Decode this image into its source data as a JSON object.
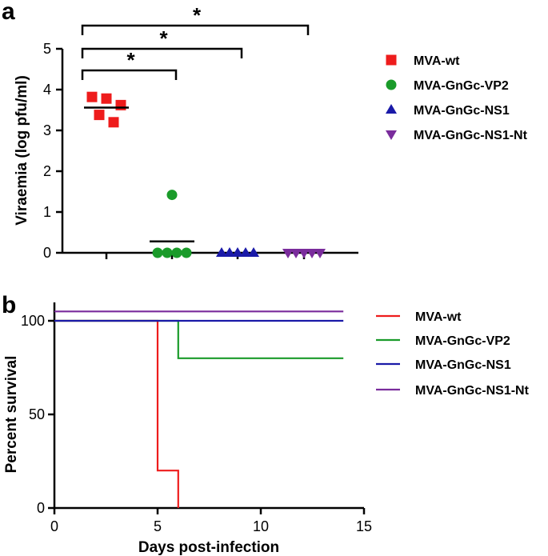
{
  "figure": {
    "panel_a_label": "a",
    "panel_b_label": "b"
  },
  "colors": {
    "MVA-wt": "#ee1c1c",
    "MVA-GnGc-VP2": "#1a9b2a",
    "MVA-GnGc-NS1": "#1a1aa8",
    "MVA-GnGc-NS1-Nt": "#7a2c9c"
  },
  "chart_data": [
    {
      "type": "scatter",
      "title": "",
      "xlabel": "",
      "ylabel": "Viraemia (log pfu/ml)",
      "ylim": [
        0,
        5
      ],
      "yticks": [
        "0",
        "1",
        "2",
        "3",
        "4",
        "5"
      ],
      "legend_position": "right",
      "significance_marker": "*",
      "significance": [
        {
          "from": "MVA-wt",
          "to": "MVA-GnGc-VP2",
          "label": "*"
        },
        {
          "from": "MVA-wt",
          "to": "MVA-GnGc-NS1",
          "label": "*"
        },
        {
          "from": "MVA-wt",
          "to": "MVA-GnGc-NS1-Nt",
          "label": "*"
        }
      ],
      "series": [
        {
          "name": "MVA-wt",
          "marker": "square",
          "values": [
            3.82,
            3.78,
            3.62,
            3.38,
            3.2
          ],
          "mean": 3.56
        },
        {
          "name": "MVA-GnGc-VP2",
          "marker": "circle",
          "values": [
            1.42,
            0,
            0,
            0,
            0
          ],
          "mean": 0.28
        },
        {
          "name": "MVA-GnGc-NS1",
          "marker": "triangle-up",
          "values": [
            0,
            0,
            0,
            0,
            0
          ],
          "mean": 0
        },
        {
          "name": "MVA-GnGc-NS1-Nt",
          "marker": "triangle-down",
          "values": [
            0,
            0,
            0,
            0,
            0
          ],
          "mean": 0
        }
      ]
    },
    {
      "type": "line",
      "title": "",
      "xlabel": "Days post-infection",
      "ylabel": "Percent survival",
      "xlim": [
        0,
        15
      ],
      "ylim": [
        0,
        100
      ],
      "xticks": [
        "0",
        "5",
        "10",
        "15"
      ],
      "yticks": [
        "0",
        "50",
        "100"
      ],
      "legend_position": "right",
      "step": true,
      "series": [
        {
          "name": "MVA-wt",
          "x": [
            0,
            5,
            5,
            6,
            6
          ],
          "y": [
            100,
            100,
            20,
            20,
            0
          ]
        },
        {
          "name": "MVA-GnGc-VP2",
          "x": [
            0,
            6,
            6,
            14
          ],
          "y": [
            100,
            100,
            80,
            80
          ]
        },
        {
          "name": "MVA-GnGc-NS1",
          "x": [
            0,
            14
          ],
          "y": [
            100,
            100
          ]
        },
        {
          "name": "MVA-GnGc-NS1-Nt",
          "x": [
            0,
            14
          ],
          "y": [
            105,
            105
          ]
        }
      ]
    }
  ]
}
